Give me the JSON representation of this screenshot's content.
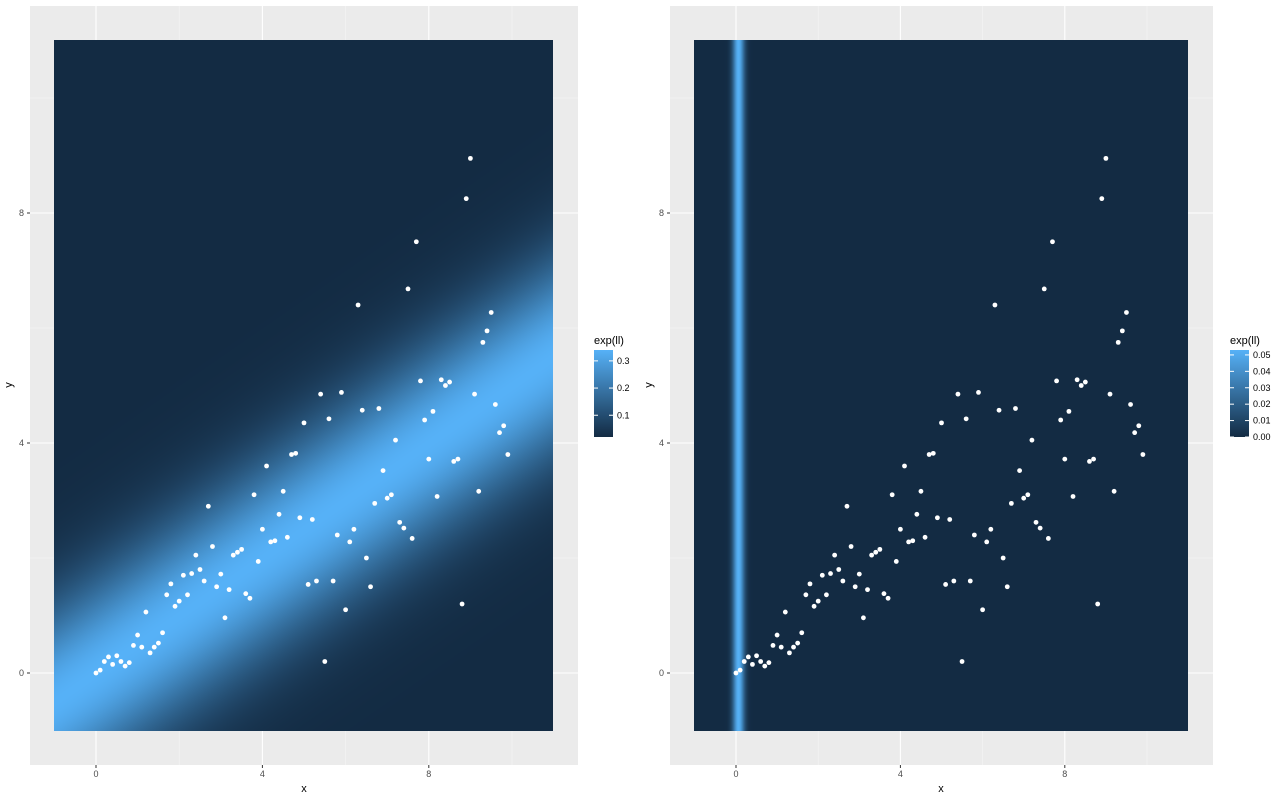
{
  "chart_data": [
    {
      "type": "heatmap",
      "title": "",
      "xlabel": "x",
      "ylabel": "y",
      "xlim": [
        -1,
        11
      ],
      "ylim": [
        -1,
        11
      ],
      "x_ticks": [
        0,
        4,
        8
      ],
      "y_ticks": [
        0,
        4,
        8
      ],
      "grid": true,
      "legend": {
        "title": "exp(ll)",
        "position": "right",
        "ticks": [
          "0.1",
          "0.2",
          "0.3"
        ],
        "tick_values": [
          0.1,
          0.2,
          0.3
        ],
        "min": 0.02,
        "max": 0.34
      },
      "fill": {
        "model": "normal_band",
        "slope": 0.5,
        "intercept": 0.0,
        "sd": 1.2,
        "low_color": "#132B43",
        "high_color": "#56B1F7"
      },
      "points_color": "#ffffff",
      "points": [
        [
          0,
          0
        ],
        [
          0.1,
          0.05
        ],
        [
          0.2,
          0.2
        ],
        [
          0.3,
          0.28
        ],
        [
          0.4,
          0.15
        ],
        [
          0.5,
          0.3
        ],
        [
          0.6,
          0.2
        ],
        [
          0.7,
          0.12
        ],
        [
          0.8,
          0.18
        ],
        [
          0.9,
          0.48
        ],
        [
          1.0,
          0.66
        ],
        [
          1.1,
          0.45
        ],
        [
          1.2,
          1.06
        ],
        [
          1.3,
          0.35
        ],
        [
          1.4,
          0.45
        ],
        [
          1.5,
          0.52
        ],
        [
          1.6,
          0.7
        ],
        [
          1.7,
          1.36
        ],
        [
          1.8,
          1.55
        ],
        [
          1.9,
          1.16
        ],
        [
          2.0,
          1.25
        ],
        [
          2.1,
          1.7
        ],
        [
          2.2,
          1.36
        ],
        [
          2.3,
          1.73
        ],
        [
          2.4,
          2.05
        ],
        [
          2.5,
          1.8
        ],
        [
          2.6,
          1.6
        ],
        [
          2.7,
          2.9
        ],
        [
          2.8,
          2.2
        ],
        [
          2.9,
          1.5
        ],
        [
          3.0,
          1.72
        ],
        [
          3.1,
          0.96
        ],
        [
          3.2,
          1.45
        ],
        [
          3.3,
          2.05
        ],
        [
          3.4,
          2.1
        ],
        [
          3.5,
          2.15
        ],
        [
          3.6,
          1.38
        ],
        [
          3.7,
          1.3
        ],
        [
          3.8,
          3.1
        ],
        [
          3.9,
          1.94
        ],
        [
          4.0,
          2.5
        ],
        [
          4.1,
          3.6
        ],
        [
          4.2,
          2.28
        ],
        [
          4.3,
          2.3
        ],
        [
          4.4,
          2.76
        ],
        [
          4.5,
          3.16
        ],
        [
          4.6,
          2.36
        ],
        [
          4.7,
          3.8
        ],
        [
          4.8,
          3.82
        ],
        [
          4.9,
          2.7
        ],
        [
          5.0,
          4.35
        ],
        [
          5.1,
          1.54
        ],
        [
          5.2,
          2.67
        ],
        [
          5.3,
          1.6
        ],
        [
          5.4,
          4.85
        ],
        [
          5.5,
          0.2
        ],
        [
          5.6,
          4.42
        ],
        [
          5.7,
          1.6
        ],
        [
          5.8,
          2.4
        ],
        [
          5.9,
          4.88
        ],
        [
          6.0,
          1.1
        ],
        [
          6.1,
          2.28
        ],
        [
          6.2,
          2.5
        ],
        [
          6.3,
          6.4
        ],
        [
          6.4,
          4.57
        ],
        [
          6.5,
          2.0
        ],
        [
          6.6,
          1.5
        ],
        [
          6.7,
          2.95
        ],
        [
          6.8,
          4.6
        ],
        [
          6.9,
          3.52
        ],
        [
          7.0,
          3.04
        ],
        [
          7.1,
          3.1
        ],
        [
          7.2,
          4.05
        ],
        [
          7.3,
          2.62
        ],
        [
          7.4,
          2.52
        ],
        [
          7.5,
          6.68
        ],
        [
          7.6,
          2.34
        ],
        [
          7.7,
          7.5
        ],
        [
          7.8,
          5.08
        ],
        [
          7.9,
          4.4
        ],
        [
          8.0,
          3.72
        ],
        [
          8.1,
          4.55
        ],
        [
          8.2,
          3.07
        ],
        [
          8.3,
          5.1
        ],
        [
          8.4,
          5.0
        ],
        [
          8.5,
          5.06
        ],
        [
          8.6,
          3.68
        ],
        [
          8.7,
          3.72
        ],
        [
          8.8,
          1.2
        ],
        [
          8.9,
          8.25
        ],
        [
          9.0,
          8.95
        ],
        [
          9.1,
          4.85
        ],
        [
          9.2,
          3.16
        ],
        [
          9.3,
          5.75
        ],
        [
          9.4,
          5.95
        ],
        [
          9.5,
          6.27
        ],
        [
          9.6,
          4.67
        ],
        [
          9.7,
          4.18
        ],
        [
          9.8,
          4.3
        ],
        [
          9.9,
          3.8
        ]
      ]
    },
    {
      "type": "heatmap",
      "title": "",
      "xlabel": "x",
      "ylabel": "y",
      "xlim": [
        -1,
        11
      ],
      "ylim": [
        -1,
        11
      ],
      "x_ticks": [
        0,
        4,
        8
      ],
      "y_ticks": [
        0,
        4,
        8
      ],
      "grid": true,
      "legend": {
        "title": "exp(ll)",
        "position": "right",
        "ticks": [
          "0.00",
          "0.01",
          "0.02",
          "0.03",
          "0.04",
          "0.05"
        ],
        "tick_values": [
          0.0,
          0.01,
          0.02,
          0.03,
          0.04,
          0.05
        ],
        "min": 0.0,
        "max": 0.053
      },
      "fill": {
        "model": "vertical_band",
        "center_x": 0.05,
        "sd": 0.1,
        "low_color": "#132B43",
        "high_color": "#56B1F7"
      },
      "points_color": "#ffffff",
      "points": "same_as_left"
    }
  ]
}
